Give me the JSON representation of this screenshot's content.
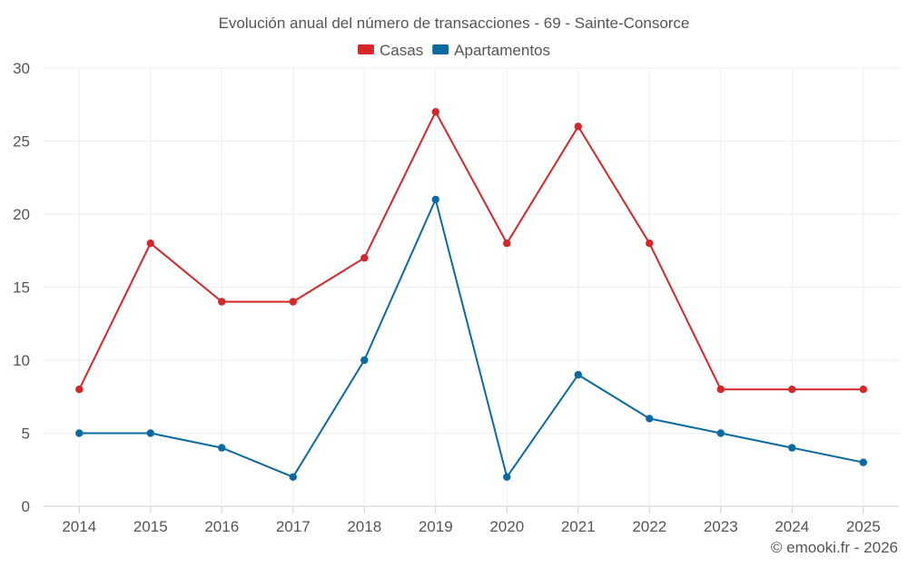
{
  "chart_data": {
    "type": "line",
    "title": "Evolución anual del número de transacciones - 69 - Sainte-Consorce",
    "categories": [
      "2014",
      "2015",
      "2016",
      "2017",
      "2018",
      "2019",
      "2020",
      "2021",
      "2022",
      "2023",
      "2024",
      "2025"
    ],
    "series": [
      {
        "name": "Casas",
        "color": "#d42729",
        "values": [
          8,
          18,
          14,
          14,
          17,
          27,
          18,
          26,
          18,
          8,
          8,
          8
        ]
      },
      {
        "name": "Apartamentos",
        "color": "#0b6aa2",
        "values": [
          5,
          5,
          4,
          2,
          10,
          21,
          2,
          9,
          6,
          5,
          4,
          3
        ]
      }
    ],
    "ylim": [
      0,
      30
    ],
    "yticks": [
      0,
      5,
      10,
      15,
      20,
      25,
      30
    ],
    "grid": true,
    "legend": "top-center",
    "xlabel": "",
    "ylabel": ""
  },
  "credit": "© emooki.fr - 2026"
}
